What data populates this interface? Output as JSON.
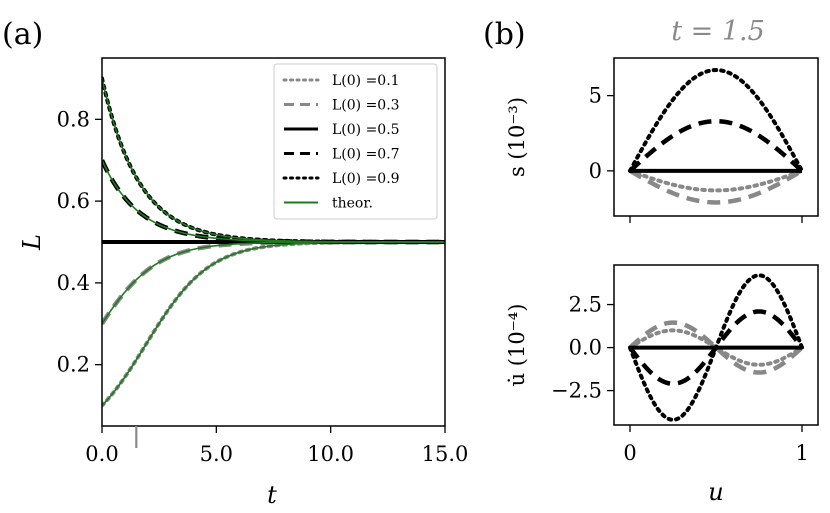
{
  "chart_data": [
    {
      "type": "line",
      "panel_label": "(a)",
      "xlabel": "t",
      "ylabel": "L",
      "xlim": [
        0,
        15
      ],
      "ylim": [
        0.05,
        0.95
      ],
      "xticks": [
        0,
        5,
        10,
        15
      ],
      "xtick_labels": [
        "0.0",
        "5.0",
        "10.0",
        "15.0"
      ],
      "yticks": [
        0.2,
        0.4,
        0.6,
        0.8
      ],
      "ytick_labels": [
        "0.2",
        "0.4",
        "0.6",
        "0.8"
      ],
      "marker_t": 1.5,
      "equilibrium": 0.5,
      "series": [
        {
          "name": "L(0) =0.1",
          "L0": 0.1,
          "style": "dotted",
          "color": "#888888"
        },
        {
          "name": "L(0) =0.3",
          "L0": 0.3,
          "style": "dashed",
          "color": "#888888"
        },
        {
          "name": "L(0) =0.5",
          "L0": 0.5,
          "style": "solid",
          "color": "#000000"
        },
        {
          "name": "L(0) =0.7",
          "L0": 0.7,
          "style": "dashed",
          "color": "#000000"
        },
        {
          "name": "L(0) =0.9",
          "L0": 0.9,
          "style": "dotted",
          "color": "#000000"
        },
        {
          "name": "theor.",
          "style": "solid-thin",
          "color": "#1f7a1f"
        }
      ]
    },
    {
      "type": "line",
      "panel_label": "(b)",
      "title": "t = 1.5",
      "xlabel": "u",
      "ylabel": "s (10⁻³)",
      "xlim": [
        0,
        1
      ],
      "ylim": [
        -3.0,
        7.5
      ],
      "yticks": [
        0,
        5
      ],
      "ytick_labels": [
        "0",
        "5"
      ],
      "series": [
        {
          "name": "L(0) =0.1",
          "amplitude": -1.3,
          "style": "dotted",
          "color": "#888888"
        },
        {
          "name": "L(0) =0.3",
          "amplitude": -2.1,
          "style": "dashed",
          "color": "#888888"
        },
        {
          "name": "L(0) =0.5",
          "amplitude": 0.0,
          "style": "solid",
          "color": "#000000"
        },
        {
          "name": "L(0) =0.7",
          "amplitude": 3.3,
          "style": "dashed",
          "color": "#000000"
        },
        {
          "name": "L(0) =0.9",
          "amplitude": 6.7,
          "style": "dotted",
          "color": "#000000"
        }
      ]
    },
    {
      "type": "line",
      "xlabel": "u",
      "ylabel": "u̇ (10⁻⁴)",
      "xlim": [
        0,
        1
      ],
      "ylim": [
        -4.5,
        4.8
      ],
      "xticks": [
        0,
        1
      ],
      "xtick_labels": [
        "0",
        "1"
      ],
      "yticks": [
        -2.5,
        0.0,
        2.5
      ],
      "ytick_labels": [
        "−2.5",
        "0.0",
        "2.5"
      ],
      "series": [
        {
          "name": "L(0) =0.1",
          "amplitude": -1.0,
          "style": "dotted",
          "color": "#888888"
        },
        {
          "name": "L(0) =0.3",
          "amplitude": -1.45,
          "style": "dashed",
          "color": "#888888"
        },
        {
          "name": "L(0) =0.5",
          "amplitude": 0.0,
          "style": "solid",
          "color": "#000000"
        },
        {
          "name": "L(0) =0.7",
          "amplitude": 2.1,
          "style": "dashed",
          "color": "#000000"
        },
        {
          "name": "L(0) =0.9",
          "amplitude": 4.2,
          "style": "dotted",
          "color": "#000000"
        }
      ]
    }
  ]
}
